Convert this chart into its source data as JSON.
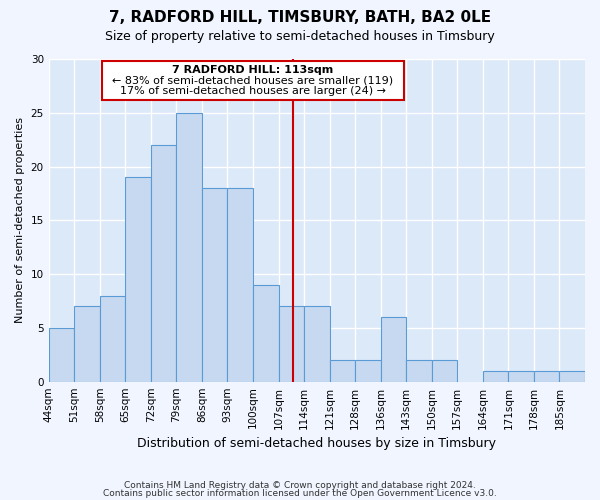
{
  "title1": "7, RADFORD HILL, TIMSBURY, BATH, BA2 0LE",
  "title2": "Size of property relative to semi-detached houses in Timsbury",
  "xlabel": "Distribution of semi-detached houses by size in Timsbury",
  "ylabel": "Number of semi-detached properties",
  "footnote1": "Contains HM Land Registry data © Crown copyright and database right 2024.",
  "footnote2": "Contains public sector information licensed under the Open Government Licence v3.0.",
  "bin_labels": [
    "44sqm",
    "51sqm",
    "58sqm",
    "65sqm",
    "72sqm",
    "79sqm",
    "86sqm",
    "93sqm",
    "100sqm",
    "107sqm",
    "114sqm",
    "121sqm",
    "128sqm",
    "136sqm",
    "143sqm",
    "150sqm",
    "157sqm",
    "164sqm",
    "171sqm",
    "178sqm",
    "185sqm"
  ],
  "values": [
    5,
    7,
    8,
    19,
    22,
    25,
    18,
    18,
    9,
    7,
    7,
    2,
    2,
    6,
    2,
    2,
    0,
    1,
    1,
    1,
    1
  ],
  "bar_color": "#c6d9f0",
  "bar_edge_color": "#5b9bd5",
  "property_size_idx": 9.57,
  "vline_color": "#cc0000",
  "annotation_text_line1": "7 RADFORD HILL: 113sqm",
  "annotation_text_line2": "← 83% of semi-detached houses are smaller (119)",
  "annotation_text_line3": "17% of semi-detached houses are larger (24) →",
  "annotation_box_color": "#ffffff",
  "annotation_box_edge": "#cc0000",
  "ylim": [
    0,
    30
  ],
  "yticks": [
    0,
    5,
    10,
    15,
    20,
    25,
    30
  ],
  "background_color": "#dce9f8",
  "grid_color": "#ffffff",
  "title1_fontsize": 11,
  "title2_fontsize": 9,
  "xlabel_fontsize": 9,
  "ylabel_fontsize": 8,
  "tick_fontsize": 7.5,
  "annotation_fontsize": 8,
  "footnote_fontsize": 6.5
}
